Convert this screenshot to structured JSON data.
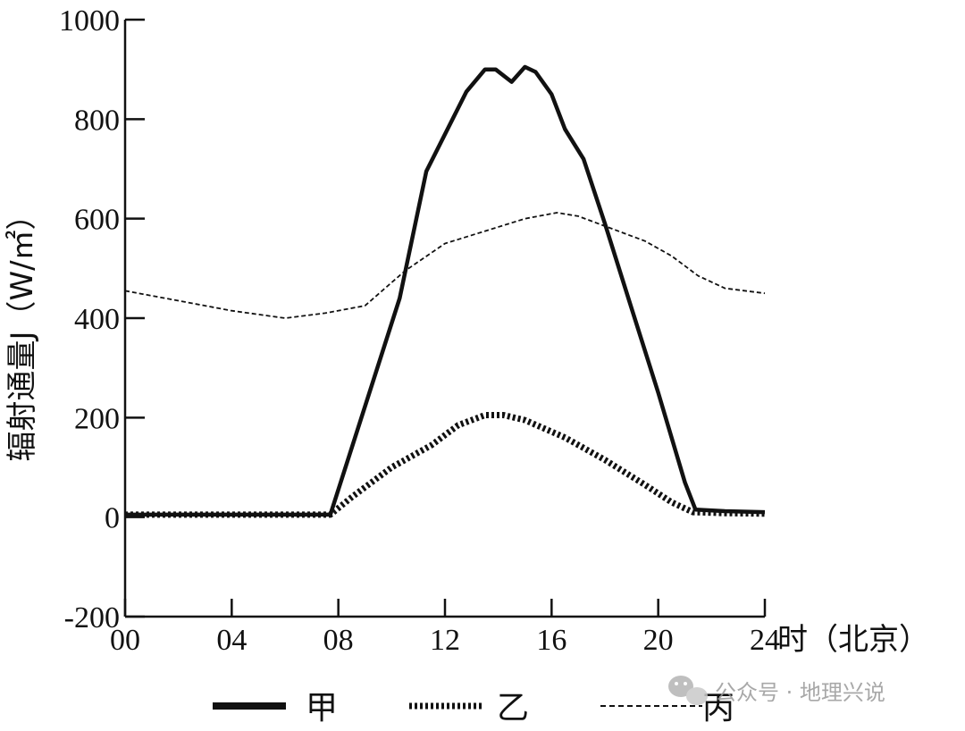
{
  "chart_data": {
    "type": "line",
    "title": "",
    "ylabel": "辐射通量J（W/㎡）",
    "xlabel": "时（北京）",
    "xlim": [
      0,
      24
    ],
    "ylim": [
      -200,
      1000
    ],
    "x_ticks": [
      0,
      4,
      8,
      12,
      16,
      20,
      24
    ],
    "x_tick_labels": [
      "00",
      "04",
      "08",
      "12",
      "16",
      "20",
      "24"
    ],
    "y_ticks": [
      -200,
      0,
      200,
      400,
      600,
      800,
      1000
    ],
    "y_tick_labels": [
      "-200",
      "0",
      "200",
      "400",
      "600",
      "800",
      "1000"
    ],
    "grid": false,
    "legend_position": "bottom",
    "series": [
      {
        "name": "甲",
        "style": "solid-thick",
        "x": [
          0,
          7.7,
          10.3,
          11.3,
          12.8,
          13.5,
          13.9,
          14.5,
          15.0,
          15.4,
          16.0,
          16.5,
          17.2,
          18.0,
          19.0,
          20.0,
          21.0,
          21.4,
          22.5,
          24.0
        ],
        "y": [
          5,
          5,
          440,
          695,
          855,
          900,
          900,
          875,
          905,
          895,
          850,
          780,
          720,
          590,
          420,
          250,
          70,
          15,
          12,
          10
        ]
      },
      {
        "name": "乙",
        "style": "dotted-thick",
        "x": [
          0,
          7.7,
          8.5,
          10.0,
          11.5,
          12.5,
          13.5,
          14.2,
          15.0,
          16.5,
          18.0,
          19.5,
          20.5,
          21.3,
          22.5,
          24.0
        ],
        "y": [
          5,
          5,
          40,
          100,
          145,
          185,
          205,
          205,
          195,
          160,
          115,
          65,
          30,
          10,
          8,
          7
        ]
      },
      {
        "name": "丙",
        "style": "dashed-thin",
        "x": [
          0,
          2.0,
          4.0,
          6.0,
          7.5,
          9.0,
          10.5,
          12.0,
          13.5,
          15.0,
          16.2,
          17.0,
          18.0,
          19.5,
          20.5,
          21.5,
          22.5,
          24.0
        ],
        "y": [
          455,
          435,
          415,
          400,
          410,
          425,
          495,
          550,
          575,
          600,
          612,
          605,
          585,
          555,
          525,
          485,
          460,
          450
        ]
      }
    ]
  },
  "watermark": {
    "icon": "wechat-icon",
    "text": "公众号 · 地理兴说"
  }
}
